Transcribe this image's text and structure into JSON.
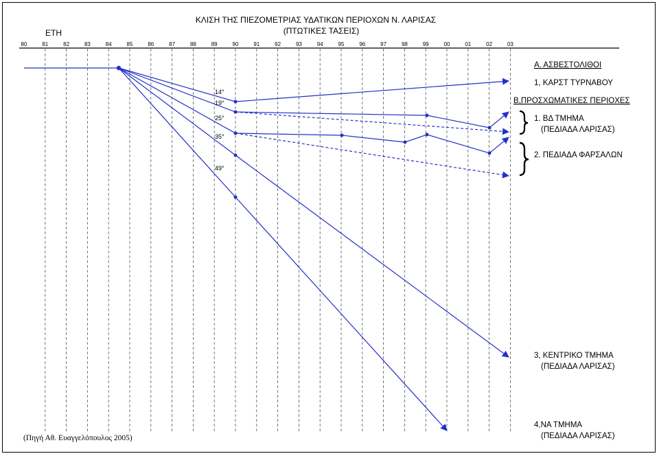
{
  "title": "ΚΛΙΣΗ ΤΗΣ ΠΙΕΖΟΜΕΤΡΙΑΣ ΥΔΑΤΙΚΩΝ ΠΕΡΙΟΧΩΝ Ν. ΛΑΡΙΣΑΣ",
  "subtitle": "(ΠΤΩΤΙΚΕΣ ΤΑΣΕΙΣ)",
  "axis_label": "ΕΤΗ",
  "years": [
    "80",
    "81",
    "82",
    "83",
    "84",
    "85",
    "86",
    "87",
    "88",
    "89",
    "90",
    "91",
    "92",
    "93",
    "94",
    "95",
    "96",
    "97",
    "98",
    "99",
    "00",
    "01",
    "02",
    "03"
  ],
  "angles": [
    "14°",
    "19°",
    "25°",
    "35°",
    "49°"
  ],
  "legend": {
    "section_a": "Α. ΑΣΒΕΣΤΟΛΙΘΟΙ",
    "item_a1": "1, ΚΑΡΣΤ ΤΥΡΝΑΒΟΥ",
    "section_b": "Β,ΠΡΟΣΧΩΜΑΤΙΚΕΣ ΠΕΡΙΟΧΕΣ",
    "item_b1": "1. ΒΔ ΤΜΗΜΑ",
    "item_b1_sub": "(ΠΕΔΙΑΔΑ ΛΑΡΙΣΑΣ)",
    "item_b2": "2. ΠΕΔΙΑΔΑ ΦΑΡΣΑΛΩΝ",
    "item_b3": "3, ΚΕΝΤΡΙΚΟ ΤΜΗΜΑ",
    "item_b3_sub": "(ΠΕΔΙΑΔΑ ΛΑΡΙΣΑΣ)",
    "item_b4": "4,ΝΑ ΤΜΗΜΑ",
    "item_b4_sub": "(ΠΕΔΙΑΔΑ ΛΑΡΙΣΑΣ)"
  },
  "source": "(Πηγή Αθ. Ευαγγελόπουλος 2005)",
  "colors": {
    "line": "#2230c8",
    "grid": "#555555",
    "text": "#000000"
  }
}
